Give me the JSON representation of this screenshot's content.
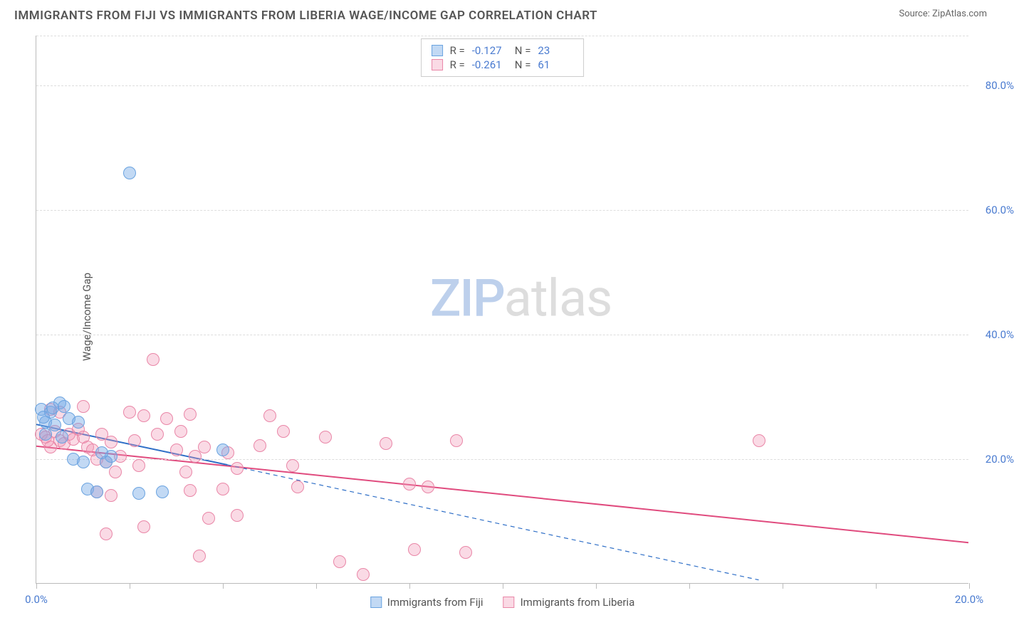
{
  "header": {
    "title": "IMMIGRANTS FROM FIJI VS IMMIGRANTS FROM LIBERIA WAGE/INCOME GAP CORRELATION CHART",
    "source_prefix": "Source: ",
    "source_name": "ZipAtlas.com"
  },
  "chart": {
    "type": "scatter",
    "y_axis_label": "Wage/Income Gap",
    "background_color": "#ffffff",
    "grid_color": "#dddddd",
    "axis_color": "#bbbbbb",
    "tick_label_color": "#4a7bd0",
    "xlim": [
      0,
      20
    ],
    "ylim": [
      0,
      88
    ],
    "xticks": [
      0,
      2,
      4,
      6,
      8,
      10,
      12,
      14,
      16,
      18,
      20
    ],
    "xtick_labels": {
      "0": "0.0%",
      "20": "20.0%"
    },
    "yticks": [
      20,
      40,
      60,
      80
    ],
    "ytick_labels": {
      "20": "20.0%",
      "40": "40.0%",
      "60": "60.0%",
      "80": "80.0%"
    },
    "marker_radius": 9,
    "marker_border_width": 1.5,
    "trend_line_width": 2
  },
  "series": {
    "fiji": {
      "label": "Immigrants from Fiji",
      "fill_color": "rgba(120,170,230,0.45)",
      "border_color": "#6aa3e0",
      "trend_color": "#2f6fc7",
      "R": "-0.127",
      "N": "23",
      "trend_start": [
        0,
        25.5
      ],
      "trend_end_solid": [
        4.1,
        19
      ],
      "trend_end_dashed": [
        15.5,
        0.5
      ],
      "points": [
        [
          0.1,
          28
        ],
        [
          0.3,
          27.5
        ],
        [
          0.2,
          26
        ],
        [
          0.5,
          29
        ],
        [
          0.4,
          25.5
        ],
        [
          0.6,
          28.5
        ],
        [
          0.2,
          24
        ],
        [
          0.35,
          28.2
        ],
        [
          0.7,
          26.5
        ],
        [
          0.8,
          20
        ],
        [
          1.0,
          19.5
        ],
        [
          0.9,
          26
        ],
        [
          1.1,
          15.2
        ],
        [
          1.3,
          14.8
        ],
        [
          1.5,
          19.5
        ],
        [
          1.6,
          20.5
        ],
        [
          2.0,
          66
        ],
        [
          2.2,
          14.5
        ],
        [
          2.7,
          14.7
        ],
        [
          1.4,
          21
        ],
        [
          0.55,
          23.5
        ],
        [
          0.15,
          26.8
        ],
        [
          4.0,
          21.5
        ]
      ]
    },
    "liberia": {
      "label": "Immigrants from Liberia",
      "fill_color": "rgba(240,150,180,0.35)",
      "border_color": "#e986a7",
      "trend_color": "#e04b7e",
      "R": "-0.261",
      "N": "61",
      "trend_start": [
        0,
        22
      ],
      "trend_end_solid": [
        20,
        6.5
      ],
      "points": [
        [
          0.1,
          24
        ],
        [
          0.2,
          23.5
        ],
        [
          0.3,
          22
        ],
        [
          0.25,
          23
        ],
        [
          0.4,
          24.5
        ],
        [
          0.5,
          23
        ],
        [
          0.6,
          22.5
        ],
        [
          0.7,
          24
        ],
        [
          0.8,
          23.2
        ],
        [
          0.9,
          24.8
        ],
        [
          0.3,
          28
        ],
        [
          0.5,
          27.5
        ],
        [
          1.0,
          23.5
        ],
        [
          1.1,
          22
        ],
        [
          1.2,
          21.5
        ],
        [
          1.3,
          20
        ],
        [
          1.4,
          24
        ],
        [
          1.5,
          19.5
        ],
        [
          1.6,
          22.8
        ],
        [
          1.7,
          18
        ],
        [
          1.8,
          20.5
        ],
        [
          1.3,
          14.8
        ],
        [
          1.6,
          14.2
        ],
        [
          1.5,
          8
        ],
        [
          2.0,
          27.5
        ],
        [
          2.1,
          23
        ],
        [
          2.2,
          19
        ],
        [
          2.3,
          9.2
        ],
        [
          2.3,
          27
        ],
        [
          2.5,
          36
        ],
        [
          2.6,
          24
        ],
        [
          2.8,
          26.5
        ],
        [
          3.0,
          21.5
        ],
        [
          3.1,
          24.5
        ],
        [
          3.2,
          18
        ],
        [
          3.3,
          15
        ],
        [
          3.3,
          27.2
        ],
        [
          3.4,
          20.5
        ],
        [
          3.5,
          4.5
        ],
        [
          3.6,
          22
        ],
        [
          3.7,
          10.5
        ],
        [
          4.0,
          15.2
        ],
        [
          4.1,
          21
        ],
        [
          4.3,
          18.5
        ],
        [
          4.3,
          11
        ],
        [
          4.8,
          22.2
        ],
        [
          5.0,
          27
        ],
        [
          5.3,
          24.5
        ],
        [
          5.5,
          19
        ],
        [
          5.6,
          15.5
        ],
        [
          6.2,
          23.5
        ],
        [
          6.5,
          3.5
        ],
        [
          7.0,
          1.5
        ],
        [
          7.5,
          22.5
        ],
        [
          8.0,
          16
        ],
        [
          8.1,
          5.5
        ],
        [
          8.4,
          15.5
        ],
        [
          9.0,
          23
        ],
        [
          9.2,
          5
        ],
        [
          15.5,
          23
        ],
        [
          1.0,
          28.5
        ]
      ]
    }
  },
  "stats_legend": {
    "r_label": "R =",
    "n_label": "N ="
  },
  "watermark": {
    "part1": "ZIP",
    "part2": "atlas"
  }
}
